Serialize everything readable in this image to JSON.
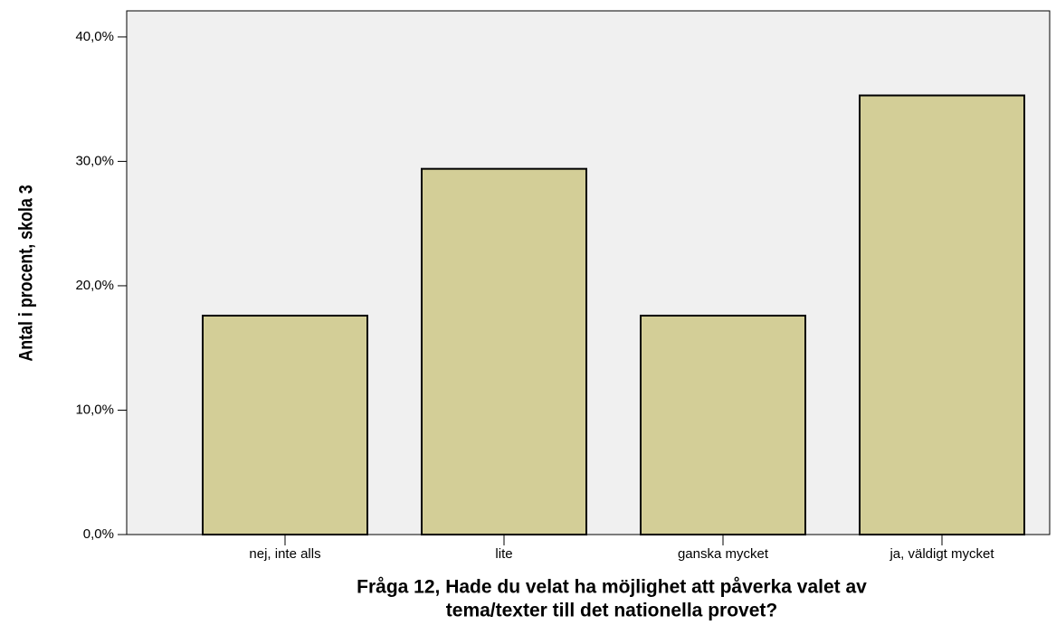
{
  "chart_data": {
    "type": "bar",
    "ylabel": "Antal i procent, skola 3",
    "xlabel": [
      "Fråga 12, Hade du velat ha möjlighet att påverka valet av",
      "tema/texter till det nationella provet?"
    ],
    "categories": [
      "nej, inte alls",
      "lite",
      "ganska mycket",
      "ja, väldigt mycket"
    ],
    "values": [
      17.6,
      29.4,
      17.6,
      35.3
    ],
    "color": "#d3ce97",
    "ylim": [
      0,
      42.1
    ],
    "yticks": [
      {
        "value": 0,
        "label": "0,0%"
      },
      {
        "value": 10,
        "label": "10,0%"
      },
      {
        "value": 20,
        "label": "20,0%"
      },
      {
        "value": 30,
        "label": "30,0%"
      },
      {
        "value": 40,
        "label": "40,0%"
      }
    ]
  }
}
